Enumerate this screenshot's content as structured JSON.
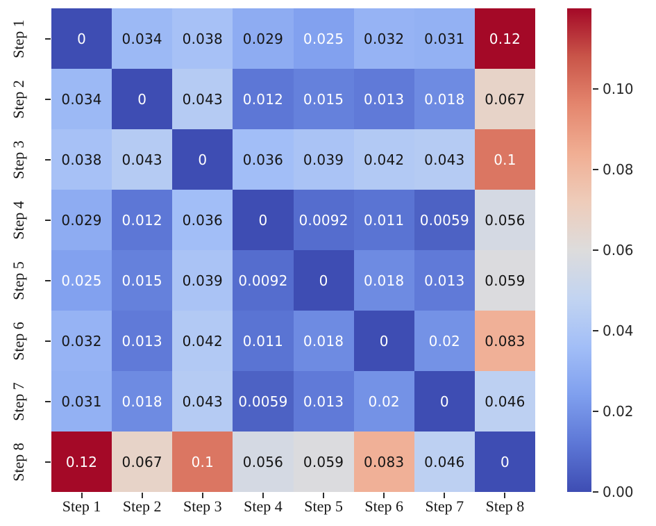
{
  "chart_data": {
    "type": "heatmap",
    "title": "",
    "xlabel": "",
    "ylabel": "",
    "row_labels": [
      "Step 1",
      "Step 2",
      "Step 3",
      "Step 4",
      "Step 5",
      "Step 6",
      "Step 7",
      "Step 8"
    ],
    "col_labels": [
      "Step 1",
      "Step 2",
      "Step 3",
      "Step 4",
      "Step 5",
      "Step 6",
      "Step 7",
      "Step 8"
    ],
    "matrix": [
      [
        0,
        0.034,
        0.038,
        0.029,
        0.025,
        0.032,
        0.031,
        0.12
      ],
      [
        0.034,
        0,
        0.043,
        0.012,
        0.015,
        0.013,
        0.018,
        0.067
      ],
      [
        0.038,
        0.043,
        0,
        0.036,
        0.039,
        0.042,
        0.043,
        0.1
      ],
      [
        0.029,
        0.012,
        0.036,
        0,
        0.0092,
        0.011,
        0.0059,
        0.056
      ],
      [
        0.025,
        0.015,
        0.039,
        0.0092,
        0,
        0.018,
        0.013,
        0.059
      ],
      [
        0.032,
        0.013,
        0.042,
        0.011,
        0.018,
        0,
        0.02,
        0.083
      ],
      [
        0.031,
        0.018,
        0.043,
        0.0059,
        0.013,
        0.02,
        0,
        0.046
      ],
      [
        0.12,
        0.067,
        0.1,
        0.056,
        0.059,
        0.083,
        0.046,
        0
      ]
    ],
    "cell_labels": [
      [
        "0",
        "0.034",
        "0.038",
        "0.029",
        "0.025",
        "0.032",
        "0.031",
        "0.12"
      ],
      [
        "0.034",
        "0",
        "0.043",
        "0.012",
        "0.015",
        "0.013",
        "0.018",
        "0.067"
      ],
      [
        "0.038",
        "0.043",
        "0",
        "0.036",
        "0.039",
        "0.042",
        "0.043",
        "0.1"
      ],
      [
        "0.029",
        "0.012",
        "0.036",
        "0",
        "0.0092",
        "0.011",
        "0.0059",
        "0.056"
      ],
      [
        "0.025",
        "0.015",
        "0.039",
        "0.0092",
        "0",
        "0.018",
        "0.013",
        "0.059"
      ],
      [
        "0.032",
        "0.013",
        "0.042",
        "0.011",
        "0.018",
        "0",
        "0.02",
        "0.083"
      ],
      [
        "0.031",
        "0.018",
        "0.043",
        "0.0059",
        "0.013",
        "0.02",
        "0",
        "0.046"
      ],
      [
        "0.12",
        "0.067",
        "0.1",
        "0.056",
        "0.059",
        "0.083",
        "0.046",
        "0"
      ]
    ],
    "colormap": "coolwarm",
    "vmin": 0,
    "vmax": 0.12,
    "grid": false,
    "legend_position": "right-colorbar",
    "colorbar_ticks": [
      {
        "value": 0.0,
        "label": "0.00"
      },
      {
        "value": 0.02,
        "label": "0.02"
      },
      {
        "value": 0.04,
        "label": "0.04"
      },
      {
        "value": 0.06,
        "label": "0.06"
      },
      {
        "value": 0.08,
        "label": "0.08"
      },
      {
        "value": 0.1,
        "label": "0.10"
      }
    ]
  },
  "colors": {
    "background": "#ffffff",
    "cmap_anchors": [
      "#3b4cc0",
      "#5977e3",
      "#7b9ff9",
      "#9ebeff",
      "#c0d4f5",
      "#dddcdc",
      "#f2cbb7",
      "#f7ac8e",
      "#ee8468",
      "#d65244",
      "#b40426"
    ],
    "annotation_text_dark": "#151515",
    "annotation_text_light": "#ffffff",
    "tick_mark": "#2b2b2b",
    "tick_label": "#141414",
    "colorbar_label": "#262626"
  }
}
